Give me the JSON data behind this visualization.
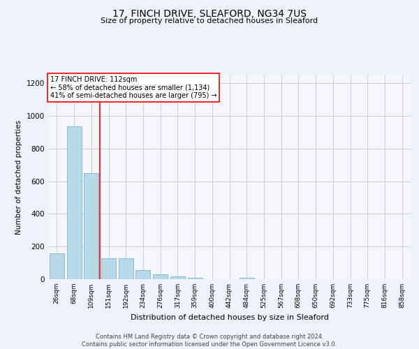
{
  "title1": "17, FINCH DRIVE, SLEAFORD, NG34 7US",
  "title2": "Size of property relative to detached houses in Sleaford",
  "xlabel": "Distribution of detached houses by size in Sleaford",
  "ylabel": "Number of detached properties",
  "categories": [
    "26sqm",
    "68sqm",
    "109sqm",
    "151sqm",
    "192sqm",
    "234sqm",
    "276sqm",
    "317sqm",
    "359sqm",
    "400sqm",
    "442sqm",
    "484sqm",
    "525sqm",
    "567sqm",
    "608sqm",
    "650sqm",
    "692sqm",
    "733sqm",
    "775sqm",
    "816sqm",
    "858sqm"
  ],
  "values": [
    160,
    935,
    650,
    130,
    130,
    55,
    30,
    15,
    10,
    0,
    0,
    10,
    0,
    0,
    0,
    0,
    0,
    0,
    0,
    0,
    0
  ],
  "bar_color": "#b8d9e8",
  "bar_edge_color": "#7bb3cc",
  "reference_line_color": "red",
  "annotation_text": "17 FINCH DRIVE: 112sqm\n← 58% of detached houses are smaller (1,134)\n41% of semi-detached houses are larger (795) →",
  "annotation_box_color": "white",
  "annotation_box_edge_color": "red",
  "ylim": [
    0,
    1250
  ],
  "yticks": [
    0,
    200,
    400,
    600,
    800,
    1000,
    1200
  ],
  "footer_text": "Contains HM Land Registry data © Crown copyright and database right 2024.\nContains public sector information licensed under the Open Government Licence v3.0.",
  "bg_color": "#eef2fb",
  "plot_bg_color": "#f5f7fd",
  "grid_color": "#c8cce0"
}
